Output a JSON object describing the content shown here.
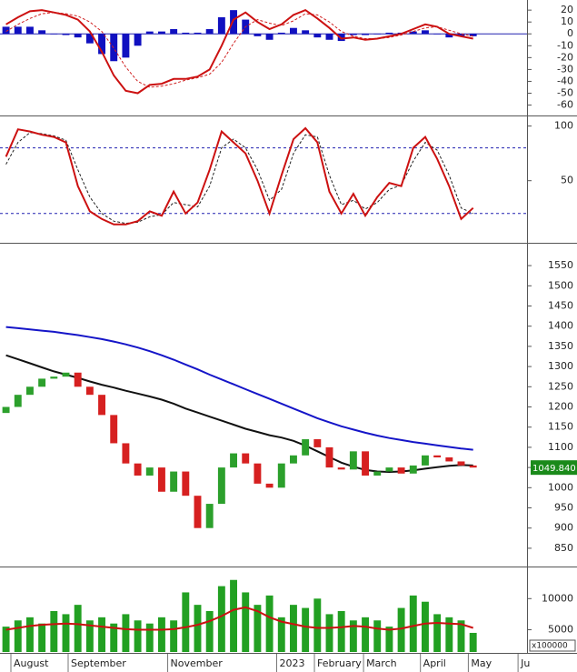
{
  "x_axis": {
    "xlim": [
      -0.5,
      43.5
    ],
    "xticks": [
      {
        "value": 0.41,
        "label": "August"
      },
      {
        "value": 5.19,
        "label": "September"
      },
      {
        "value": 13.5,
        "label": "November"
      },
      {
        "value": 22.6,
        "label": "2023"
      },
      {
        "value": 25.75,
        "label": "February"
      },
      {
        "value": 29.85,
        "label": "March"
      },
      {
        "value": 34.6,
        "label": "April"
      },
      {
        "value": 38.6,
        "label": "May"
      },
      {
        "value": 42.75,
        "label": "Ju"
      }
    ]
  },
  "chart_data": [
    {
      "type": "macd",
      "ylim": [
        -68,
        27
      ],
      "yticks": [
        20,
        10,
        0,
        -10,
        -20,
        -30,
        -40,
        -50,
        -60
      ],
      "series": [
        {
          "kind": "bar",
          "color": "#1010c0",
          "values": [
            6,
            6,
            6,
            3,
            0,
            -1,
            -3,
            -8,
            -17,
            -23,
            -20,
            -10,
            2,
            2,
            4,
            1,
            1,
            4,
            14,
            20,
            12,
            -2,
            -5,
            1,
            5,
            3,
            -3,
            -5,
            -6,
            -1,
            -1,
            0,
            1,
            1,
            2,
            3,
            0,
            -3,
            -2,
            -2
          ]
        },
        {
          "kind": "line",
          "style": "dashed",
          "color": "#d02020",
          "values": [
            2,
            8,
            13,
            17,
            18,
            17,
            15,
            10,
            2,
            -12,
            -28,
            -40,
            -45,
            -44,
            -42,
            -39,
            -37,
            -34,
            -24,
            -8,
            6,
            12,
            9,
            7,
            11,
            17,
            16,
            10,
            2,
            -2,
            -4,
            -4,
            -3,
            -1,
            2,
            5,
            6,
            3,
            0,
            -2
          ]
        },
        {
          "kind": "line",
          "style": "solid",
          "color": "#cc1111",
          "values": [
            8,
            14,
            19,
            20,
            18,
            16,
            12,
            2,
            -15,
            -35,
            -48,
            -50,
            -43,
            -42,
            -38,
            -38,
            -36,
            -30,
            -10,
            12,
            18,
            10,
            4,
            8,
            16,
            20,
            13,
            5,
            -4,
            -3,
            -5,
            -4,
            -2,
            0,
            4,
            8,
            6,
            0,
            -2,
            -4
          ]
        }
      ]
    },
    {
      "type": "stochastic",
      "ylim": [
        -6,
        108
      ],
      "yticks": [
        100,
        50
      ],
      "levels": [
        20,
        80
      ],
      "level_color": "#2020b0",
      "series": [
        {
          "kind": "line",
          "style": "dashed",
          "color": "#222222",
          "values": [
            65,
            85,
            94,
            93,
            91,
            87,
            60,
            35,
            20,
            13,
            11,
            12,
            17,
            19,
            30,
            28,
            26,
            45,
            80,
            88,
            80,
            60,
            32,
            42,
            75,
            92,
            90,
            55,
            28,
            32,
            24,
            30,
            42,
            46,
            68,
            85,
            78,
            55,
            25,
            20
          ]
        },
        {
          "kind": "line",
          "style": "solid",
          "color": "#cc1111",
          "values": [
            72,
            97,
            95,
            92,
            90,
            85,
            45,
            22,
            15,
            10,
            10,
            13,
            22,
            18,
            40,
            20,
            30,
            60,
            95,
            85,
            75,
            50,
            20,
            55,
            88,
            98,
            85,
            40,
            20,
            38,
            18,
            35,
            48,
            45,
            80,
            90,
            70,
            45,
            15,
            25
          ]
        }
      ]
    },
    {
      "type": "candlestick",
      "ylim": [
        807,
        1602
      ],
      "yticks": [
        850,
        900,
        950,
        1000,
        1050,
        1100,
        1150,
        1200,
        1250,
        1300,
        1350,
        1400,
        1450,
        1500,
        1550
      ],
      "up_color": "#2ca02c",
      "down_color": "#d62020",
      "series": [
        {
          "kind": "line",
          "style": "solid",
          "color": "#1515c8",
          "values": [
            1398,
            1395,
            1392,
            1389,
            1386,
            1382,
            1378,
            1373,
            1368,
            1362,
            1355,
            1347,
            1338,
            1328,
            1317,
            1305,
            1293,
            1280,
            1268,
            1256,
            1244,
            1232,
            1220,
            1208,
            1196,
            1184,
            1172,
            1162,
            1152,
            1144,
            1136,
            1129,
            1123,
            1118,
            1113,
            1109,
            1105,
            1101,
            1097,
            1094
          ]
        },
        {
          "kind": "line",
          "style": "solid",
          "color": "#111111",
          "values": [
            1328,
            1318,
            1308,
            1298,
            1288,
            1280,
            1272,
            1263,
            1255,
            1248,
            1240,
            1233,
            1226,
            1218,
            1208,
            1196,
            1186,
            1176,
            1166,
            1156,
            1146,
            1138,
            1130,
            1124,
            1116,
            1104,
            1090,
            1076,
            1062,
            1052,
            1044,
            1040,
            1039,
            1040,
            1043,
            1047,
            1051,
            1054,
            1056,
            1055
          ]
        },
        {
          "kind": "candle",
          "open": [
            1185,
            1200,
            1230,
            1250,
            1270,
            1275,
            1285,
            1250,
            1230,
            1180,
            1110,
            1060,
            1030,
            1050,
            990,
            1040,
            980,
            900,
            960,
            1050,
            1085,
            1060,
            1010,
            1000,
            1060,
            1080,
            1120,
            1100,
            1050,
            1045,
            1090,
            1030,
            1040,
            1050,
            1035,
            1055,
            1080,
            1075,
            1065,
            1055
          ],
          "close": [
            1200,
            1230,
            1250,
            1270,
            1275,
            1285,
            1250,
            1230,
            1180,
            1110,
            1060,
            1030,
            1050,
            990,
            1040,
            980,
            900,
            960,
            1050,
            1085,
            1060,
            1010,
            1000,
            1060,
            1080,
            1120,
            1100,
            1050,
            1045,
            1090,
            1030,
            1040,
            1050,
            1035,
            1055,
            1080,
            1075,
            1065,
            1055,
            1049.84
          ]
        }
      ],
      "last_price": {
        "value": 1049.84,
        "label": "1049.840"
      }
    },
    {
      "type": "volume",
      "ylim": [
        1430,
        14860
      ],
      "yticks": [
        10000,
        5000
      ],
      "unit_label": "x100000",
      "series": [
        {
          "kind": "bar",
          "color": "#22a022",
          "values": [
            5500,
            6500,
            7000,
            6000,
            8000,
            7500,
            9000,
            6500,
            7000,
            6000,
            7500,
            6500,
            6000,
            7000,
            6500,
            11000,
            9000,
            8000,
            12000,
            13000,
            11000,
            9000,
            10500,
            7000,
            9000,
            8500,
            10000,
            7500,
            8000,
            6500,
            7000,
            6500,
            5500,
            8500,
            10500,
            9500,
            7500,
            7000,
            6500,
            4500
          ]
        },
        {
          "kind": "line",
          "style": "solid",
          "color": "#cc1111",
          "values": [
            5000,
            5300,
            5600,
            5800,
            5900,
            6000,
            5900,
            5700,
            5500,
            5300,
            5100,
            5000,
            5000,
            5000,
            5100,
            5400,
            5800,
            6400,
            7200,
            8200,
            8600,
            8000,
            7000,
            6300,
            5900,
            5500,
            5300,
            5300,
            5400,
            5600,
            5500,
            5200,
            5000,
            5200,
            5600,
            6000,
            6100,
            6000,
            5900,
            5300
          ]
        }
      ]
    }
  ]
}
